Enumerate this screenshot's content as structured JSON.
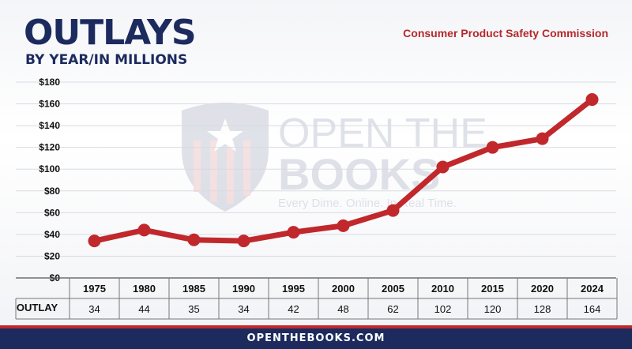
{
  "header": {
    "title": "OUTLAYS",
    "subtitle": "BY YEAR/IN MILLIONS",
    "agency": "Consumer Product Safety Commission"
  },
  "watermark": {
    "line1": "OPEN THE",
    "line2": "BOOKS",
    "tagline": "Every Dime. Online. In Real Time."
  },
  "footer": {
    "site": "OPENTHEBOOKS.COM"
  },
  "table": {
    "row_label": "OUTLAY"
  },
  "colors": {
    "line": "#c0282c",
    "navy": "#1c2a5e"
  },
  "chart_data": {
    "type": "line",
    "categories": [
      "1975",
      "1980",
      "1985",
      "1990",
      "1995",
      "2000",
      "2005",
      "2010",
      "2015",
      "2020",
      "2024"
    ],
    "values": [
      34,
      44,
      35,
      34,
      42,
      48,
      62,
      102,
      120,
      128,
      164
    ],
    "yticks": [
      "$0",
      "$20",
      "$40",
      "$60",
      "$80",
      "$100",
      "$120",
      "$140",
      "$160",
      "$180"
    ],
    "ylim": [
      0,
      180
    ],
    "grid": true
  }
}
